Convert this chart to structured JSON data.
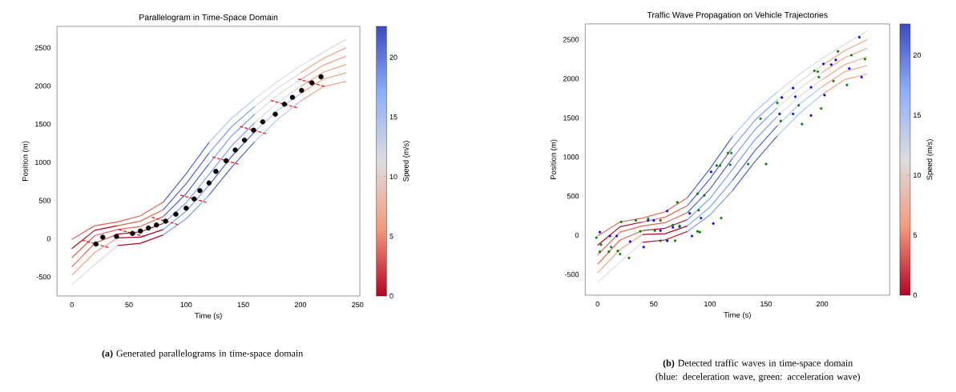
{
  "chart_data": [
    {
      "type": "line",
      "title": "Parallelogram in Time-Space Domain",
      "xlabel": "Time (s)",
      "ylabel": "Position (m)",
      "clabel": "Speed (m/s)",
      "xlim": [
        -13,
        252
      ],
      "ylim": [
        -750,
        2780
      ],
      "xticks": [
        0,
        50,
        100,
        150,
        200,
        250
      ],
      "yticks": [
        -500,
        0,
        500,
        1000,
        1500,
        2000,
        2500
      ],
      "clim": [
        0,
        22.6
      ],
      "cticks": [
        0,
        5,
        10,
        15,
        20
      ],
      "annotations": [
        "**(a)** Generated parallelograms in time-space domain"
      ],
      "series": [
        {
          "type": "line",
          "color": "#e16751",
          "x": [
            0,
            20,
            40,
            60,
            80
          ],
          "values": [
            -10,
            170,
            220,
            300,
            480
          ]
        },
        {
          "type": "line",
          "color": "#4a63d3",
          "x": [
            80,
            100,
            120
          ],
          "values": [
            480,
            850,
            1260
          ]
        },
        {
          "type": "line",
          "color": "#aac7fd",
          "x": [
            120,
            140,
            160
          ],
          "values": [
            1260,
            1580,
            1830
          ]
        },
        {
          "type": "line",
          "color": "#dddcdc",
          "x": [
            160,
            180,
            200,
            220,
            240
          ],
          "values": [
            1830,
            2060,
            2260,
            2440,
            2610
          ]
        },
        {
          "type": "line",
          "color": "#b40426",
          "x": [
            0,
            20,
            40
          ],
          "values": [
            -130,
            110,
            170
          ]
        },
        {
          "type": "line",
          "color": "#e16751",
          "x": [
            40,
            60,
            80
          ],
          "values": [
            170,
            230,
            380
          ]
        },
        {
          "type": "line",
          "color": "#4a63d3",
          "x": [
            80,
            100,
            120
          ],
          "values": [
            380,
            720,
            1120
          ]
        },
        {
          "type": "line",
          "color": "#7b9ff9",
          "x": [
            120,
            140,
            160
          ],
          "values": [
            1120,
            1470,
            1730
          ]
        },
        {
          "type": "line",
          "color": "#dddcdc",
          "x": [
            160,
            180,
            200
          ],
          "values": [
            1730,
            1970,
            2170
          ]
        },
        {
          "type": "line",
          "color": "#f4a384",
          "x": [
            200,
            220,
            240
          ],
          "values": [
            2170,
            2360,
            2500
          ]
        },
        {
          "type": "line",
          "color": "#e16751",
          "x": [
            0,
            20,
            40,
            60,
            80
          ],
          "values": [
            -250,
            40,
            120,
            160,
            290
          ]
        },
        {
          "type": "line",
          "color": "#4a63d3",
          "x": [
            80,
            100,
            120
          ],
          "values": [
            290,
            590,
            980
          ]
        },
        {
          "type": "line",
          "color": "#7b9ff9",
          "x": [
            120,
            140,
            160
          ],
          "values": [
            980,
            1350,
            1630
          ]
        },
        {
          "type": "line",
          "color": "#dddcdc",
          "x": [
            160,
            180,
            200
          ],
          "values": [
            1630,
            1880,
            2080
          ]
        },
        {
          "type": "line",
          "color": "#f4a384",
          "x": [
            200,
            220,
            240
          ],
          "values": [
            2080,
            2270,
            2390
          ]
        },
        {
          "type": "line",
          "color": "#e16751",
          "x": [
            0,
            20,
            40
          ],
          "values": [
            -370,
            -60,
            60
          ]
        },
        {
          "type": "line",
          "color": "#b40426",
          "x": [
            40,
            60,
            80
          ],
          "values": [
            60,
            90,
            200
          ]
        },
        {
          "type": "line",
          "color": "#7b9ff9",
          "x": [
            80,
            100,
            120,
            140,
            160
          ],
          "values": [
            200,
            470,
            840,
            1220,
            1520
          ]
        },
        {
          "type": "line",
          "color": "#dddcdc",
          "x": [
            160,
            180,
            200
          ],
          "values": [
            1520,
            1780,
            1990
          ]
        },
        {
          "type": "line",
          "color": "#f4a384",
          "x": [
            200,
            220,
            240
          ],
          "values": [
            1990,
            2180,
            2280
          ]
        },
        {
          "type": "line",
          "color": "#f4a384",
          "x": [
            0,
            20,
            40
          ],
          "values": [
            -480,
            -180,
            10
          ]
        },
        {
          "type": "line",
          "color": "#b40426",
          "x": [
            40,
            60,
            80
          ],
          "values": [
            10,
            20,
            120
          ]
        },
        {
          "type": "line",
          "color": "#7b9ff9",
          "x": [
            80,
            100,
            120
          ],
          "values": [
            120,
            360,
            700
          ]
        },
        {
          "type": "line",
          "color": "#4a63d3",
          "x": [
            120,
            140,
            160
          ],
          "values": [
            700,
            1080,
            1400
          ]
        },
        {
          "type": "line",
          "color": "#aac7fd",
          "x": [
            160,
            180,
            200
          ],
          "values": [
            1400,
            1680,
            1900
          ]
        },
        {
          "type": "line",
          "color": "#f4a384",
          "x": [
            200,
            220,
            240
          ],
          "values": [
            1900,
            2090,
            2170
          ]
        },
        {
          "type": "line",
          "color": "#dddcdc",
          "x": [
            0,
            20,
            40
          ],
          "values": [
            -600,
            -340,
            -90
          ]
        },
        {
          "type": "line",
          "color": "#b40426",
          "x": [
            40,
            60,
            80
          ],
          "values": [
            -90,
            -60,
            50
          ]
        },
        {
          "type": "line",
          "color": "#7b9ff9",
          "x": [
            80,
            100,
            120
          ],
          "values": [
            50,
            260,
            570
          ]
        },
        {
          "type": "line",
          "color": "#4a63d3",
          "x": [
            120,
            140,
            160
          ],
          "values": [
            570,
            940,
            1270
          ]
        },
        {
          "type": "line",
          "color": "#aac7fd",
          "x": [
            160,
            180,
            200
          ],
          "values": [
            1270,
            1560,
            1800
          ]
        },
        {
          "type": "line",
          "color": "#f4a384",
          "x": [
            200,
            220,
            240
          ],
          "values": [
            1800,
            1990,
            2060
          ]
        },
        {
          "type": "line",
          "line_style": "dashed",
          "color": "#ff0000",
          "x": [
            9,
            33,
            null,
            41,
            65,
            null,
            70,
            94,
            null,
            95,
            119,
            null,
            123,
            147,
            null,
            147,
            171,
            null,
            174,
            198,
            null,
            198,
            222
          ],
          "values": [
            -20,
            -120,
            null,
            120,
            20,
            null,
            280,
            180,
            null,
            570,
            470,
            null,
            1070,
            970,
            null,
            1470,
            1370,
            null,
            1810,
            1710,
            null,
            2090,
            1990
          ]
        },
        {
          "type": "scatter",
          "marker": "circle",
          "color": "#000000",
          "x": [
            21,
            27,
            39,
            53,
            60,
            67,
            74,
            82,
            91,
            100,
            107,
            112,
            120,
            126,
            135,
            143,
            151,
            159,
            167,
            178,
            186,
            193,
            201,
            210,
            218
          ],
          "values": [
            -70,
            20,
            30,
            70,
            100,
            140,
            180,
            230,
            320,
            400,
            520,
            630,
            730,
            880,
            1020,
            1160,
            1290,
            1420,
            1530,
            1630,
            1760,
            1850,
            1940,
            2040,
            2120
          ]
        }
      ]
    },
    {
      "type": "line",
      "title": "Traffic Wave Propagation on Vehicle Trajectories",
      "xlabel": "Time (s)",
      "ylabel": "Position (m)",
      "clabel": "Speed (m/s)",
      "xlim": [
        -11,
        260
      ],
      "ylim": [
        -765,
        2700
      ],
      "xticks": [
        0,
        50,
        100,
        150,
        200
      ],
      "yticks": [
        -500,
        0,
        500,
        1000,
        1500,
        2000,
        2500
      ],
      "clim": [
        0,
        22.6
      ],
      "cticks": [
        0,
        5,
        10,
        15,
        20
      ],
      "annotations": [
        "**(b)** Detected traffic waves in time-space domain (blue: deceleration wave, green: acceleration wave)"
      ],
      "series": [
        {
          "type": "line",
          "color": "#e16751",
          "x": [
            0,
            20,
            40,
            60,
            80
          ],
          "values": [
            -10,
            170,
            220,
            300,
            480
          ]
        },
        {
          "type": "line",
          "color": "#4a63d3",
          "x": [
            80,
            100,
            120
          ],
          "values": [
            480,
            850,
            1260
          ]
        },
        {
          "type": "line",
          "color": "#aac7fd",
          "x": [
            120,
            140,
            160
          ],
          "values": [
            1260,
            1580,
            1830
          ]
        },
        {
          "type": "line",
          "color": "#dddcdc",
          "x": [
            160,
            180,
            200,
            220,
            240
          ],
          "values": [
            1830,
            2060,
            2260,
            2440,
            2610
          ]
        },
        {
          "type": "line",
          "color": "#b40426",
          "x": [
            0,
            20,
            40
          ],
          "values": [
            -130,
            110,
            170
          ]
        },
        {
          "type": "line",
          "color": "#e16751",
          "x": [
            40,
            60,
            80
          ],
          "values": [
            170,
            230,
            380
          ]
        },
        {
          "type": "line",
          "color": "#4a63d3",
          "x": [
            80,
            100,
            120
          ],
          "values": [
            380,
            720,
            1120
          ]
        },
        {
          "type": "line",
          "color": "#7b9ff9",
          "x": [
            120,
            140,
            160
          ],
          "values": [
            1120,
            1470,
            1730
          ]
        },
        {
          "type": "line",
          "color": "#dddcdc",
          "x": [
            160,
            180,
            200
          ],
          "values": [
            1730,
            1970,
            2170
          ]
        },
        {
          "type": "line",
          "color": "#f4a384",
          "x": [
            200,
            220,
            240
          ],
          "values": [
            2170,
            2360,
            2500
          ]
        },
        {
          "type": "line",
          "color": "#e16751",
          "x": [
            0,
            20,
            40,
            60,
            80
          ],
          "values": [
            -250,
            40,
            120,
            160,
            290
          ]
        },
        {
          "type": "line",
          "color": "#4a63d3",
          "x": [
            80,
            100,
            120
          ],
          "values": [
            290,
            590,
            980
          ]
        },
        {
          "type": "line",
          "color": "#7b9ff9",
          "x": [
            120,
            140,
            160
          ],
          "values": [
            980,
            1350,
            1630
          ]
        },
        {
          "type": "line",
          "color": "#dddcdc",
          "x": [
            160,
            180,
            200
          ],
          "values": [
            1630,
            1880,
            2080
          ]
        },
        {
          "type": "line",
          "color": "#f4a384",
          "x": [
            200,
            220,
            240
          ],
          "values": [
            2080,
            2270,
            2390
          ]
        },
        {
          "type": "line",
          "color": "#e16751",
          "x": [
            0,
            20,
            40
          ],
          "values": [
            -370,
            -60,
            60
          ]
        },
        {
          "type": "line",
          "color": "#b40426",
          "x": [
            40,
            60,
            80
          ],
          "values": [
            60,
            90,
            200
          ]
        },
        {
          "type": "line",
          "color": "#7b9ff9",
          "x": [
            80,
            100,
            120,
            140,
            160
          ],
          "values": [
            200,
            470,
            840,
            1220,
            1520
          ]
        },
        {
          "type": "line",
          "color": "#dddcdc",
          "x": [
            160,
            180,
            200
          ],
          "values": [
            1520,
            1780,
            1990
          ]
        },
        {
          "type": "line",
          "color": "#f4a384",
          "x": [
            200,
            220,
            240
          ],
          "values": [
            1990,
            2180,
            2280
          ]
        },
        {
          "type": "line",
          "color": "#f4a384",
          "x": [
            0,
            20,
            40
          ],
          "values": [
            -480,
            -180,
            10
          ]
        },
        {
          "type": "line",
          "color": "#b40426",
          "x": [
            40,
            60,
            80
          ],
          "values": [
            10,
            20,
            120
          ]
        },
        {
          "type": "line",
          "color": "#7b9ff9",
          "x": [
            80,
            100,
            120
          ],
          "values": [
            120,
            360,
            700
          ]
        },
        {
          "type": "line",
          "color": "#4a63d3",
          "x": [
            120,
            140,
            160
          ],
          "values": [
            700,
            1080,
            1400
          ]
        },
        {
          "type": "line",
          "color": "#aac7fd",
          "x": [
            160,
            180,
            200
          ],
          "values": [
            1400,
            1680,
            1900
          ]
        },
        {
          "type": "line",
          "color": "#f4a384",
          "x": [
            200,
            220,
            240
          ],
          "values": [
            1900,
            2090,
            2170
          ]
        },
        {
          "type": "line",
          "color": "#dddcdc",
          "x": [
            0,
            20,
            40
          ],
          "values": [
            -600,
            -340,
            -90
          ]
        },
        {
          "type": "line",
          "color": "#b40426",
          "x": [
            40,
            60,
            80
          ],
          "values": [
            -90,
            -60,
            50
          ]
        },
        {
          "type": "line",
          "color": "#7b9ff9",
          "x": [
            80,
            100,
            120
          ],
          "values": [
            50,
            260,
            570
          ]
        },
        {
          "type": "line",
          "color": "#4a63d3",
          "x": [
            120,
            140,
            160
          ],
          "values": [
            570,
            940,
            1270
          ]
        },
        {
          "type": "line",
          "color": "#aac7fd",
          "x": [
            160,
            180,
            200
          ],
          "values": [
            1270,
            1560,
            1800
          ]
        },
        {
          "type": "line",
          "color": "#f4a384",
          "x": [
            200,
            220,
            240
          ],
          "values": [
            1800,
            1990,
            2060
          ]
        },
        {
          "type": "scatter",
          "marker": "circle",
          "color": "#0000ff",
          "x": [
            2,
            11,
            17,
            29,
            41,
            45,
            50,
            56,
            62,
            62,
            67,
            73,
            84,
            82,
            92,
            103,
            101,
            162,
            174,
            190,
            164,
            176,
            174,
            190,
            202,
            201,
            208,
            212,
            224,
            235,
            233
          ],
          "values": [
            40,
            -10,
            -10,
            -80,
            -150,
            190,
            190,
            60,
            -70,
            310,
            100,
            110,
            -10,
            280,
            220,
            150,
            810,
            1550,
            1550,
            1530,
            1760,
            1770,
            1880,
            1890,
            1790,
            2190,
            2180,
            2240,
            2130,
            2020,
            2530
          ]
        },
        {
          "type": "scatter",
          "marker": "circle",
          "color": "#008000",
          "x": [
            -1,
            3,
            2,
            10,
            12,
            18,
            20,
            28,
            21,
            38,
            56,
            34,
            51,
            69,
            45,
            67,
            89,
            56,
            73,
            91,
            71,
            90,
            110,
            89,
            95,
            106,
            109,
            116,
            119,
            118,
            134,
            150,
            145,
            163,
            182,
            160,
            179,
            199,
            193,
            196,
            197,
            210,
            222,
            214,
            226,
            238
          ],
          "values": [
            -30,
            -120,
            -210,
            -210,
            -150,
            -200,
            -240,
            -290,
            170,
            50,
            -70,
            190,
            60,
            -70,
            210,
            130,
            50,
            190,
            120,
            40,
            420,
            320,
            220,
            530,
            510,
            890,
            890,
            1050,
            1050,
            900,
            910,
            910,
            1490,
            1460,
            1420,
            1690,
            1660,
            1620,
            2100,
            2090,
            2020,
            1970,
            1920,
            2350,
            2300,
            2250
          ]
        }
      ]
    }
  ]
}
